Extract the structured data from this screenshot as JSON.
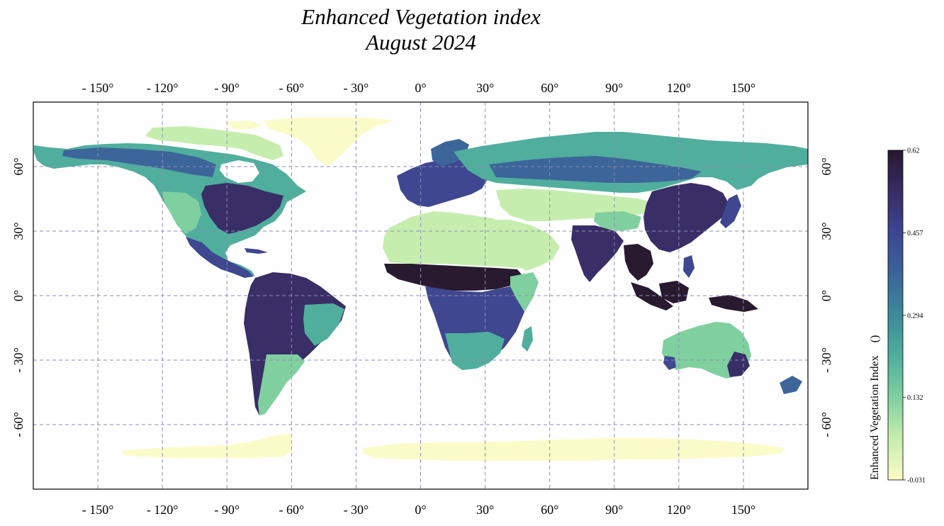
{
  "title": {
    "line1": "Enhanced Vegetation index",
    "line2": "August 2024"
  },
  "map": {
    "projection": "PlateCarree",
    "lon_range": [
      -180,
      180
    ],
    "lat_range": [
      -90,
      90
    ],
    "gridlines": {
      "style": "dashed",
      "color": "#8a8fb5",
      "lons": [
        -150,
        -120,
        -90,
        -60,
        -30,
        0,
        30,
        60,
        90,
        120,
        150
      ],
      "lats": [
        60,
        30,
        0,
        -30,
        -60
      ]
    },
    "lon_labels": [
      "- 150°",
      "- 120°",
      "- 90°",
      "- 60°",
      "- 30°",
      "0°",
      "30°",
      "60°",
      "90°",
      "120°",
      "150°"
    ],
    "lat_labels": [
      "60°",
      "30°",
      "0°",
      "- 30°",
      "- 60°"
    ]
  },
  "colorbar": {
    "label": "Enhanced Vegetation Index",
    "unit": "()",
    "ticks": [
      "0.62",
      "0.457",
      "0.294",
      "0.132",
      "-0.031"
    ],
    "tick_values": [
      0.62,
      0.457,
      0.294,
      0.132,
      -0.031
    ],
    "colormap": [
      "#fbfcc8",
      "#c6eeae",
      "#7fd09f",
      "#4fae9d",
      "#3d8a9a",
      "#3b649a",
      "#3d4690",
      "#382c66",
      "#27182e"
    ]
  },
  "colors": {
    "low": "#fbfcc8",
    "lightgreen": "#c6eeae",
    "green": "#7fd09f",
    "teal": "#4fae9d",
    "cyan": "#3d8a9a",
    "blue": "#3b649a",
    "indigo": "#3d4690",
    "dark": "#382c66",
    "darkest": "#27182e"
  }
}
